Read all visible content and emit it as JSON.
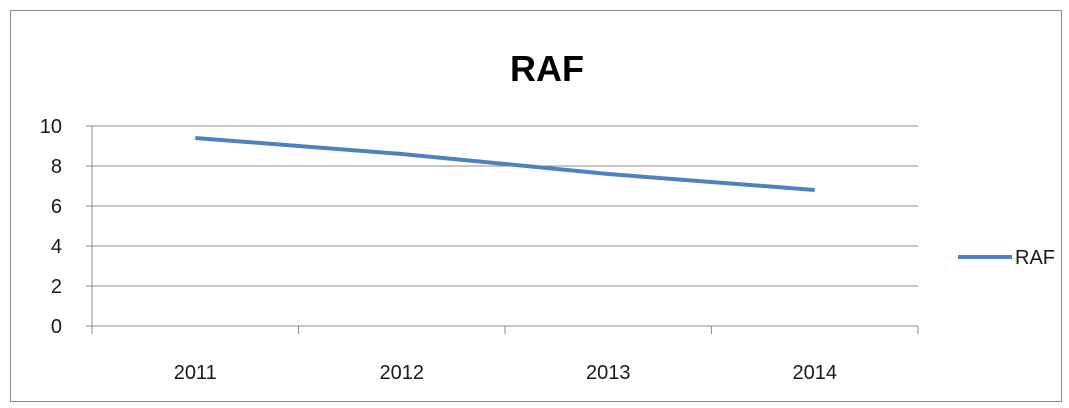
{
  "chart_data": {
    "type": "line",
    "title": "RAF",
    "categories": [
      "2011",
      "2012",
      "2013",
      "2014"
    ],
    "series": [
      {
        "name": "RAF",
        "values": [
          9.4,
          8.6,
          7.6,
          6.8
        ],
        "color": "#4f81bd"
      }
    ],
    "ylim": [
      0,
      10
    ],
    "yticks": [
      "0",
      "2",
      "4",
      "6",
      "8",
      "10"
    ],
    "grid": "horizontal",
    "legend": "right"
  }
}
